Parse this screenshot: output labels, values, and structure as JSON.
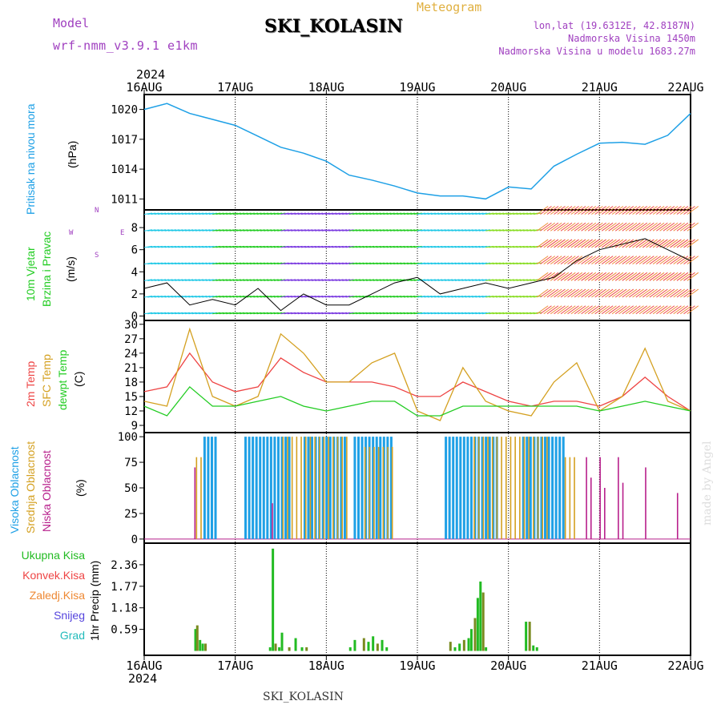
{
  "header": {
    "model_label": "Model",
    "model_value": "wrf-nmm_v3.9.1 e1km",
    "title": "SKI_KOLASIN",
    "meteogram_label": "Meteogram",
    "lonlat": "lon,lat (19.6312E, 42.8187N)",
    "altitude": "Nadmorska Visina 1450m",
    "model_altitude": "Nadmorska Visina u modelu 1683.27m"
  },
  "time_axis": {
    "year_label": "2024",
    "days": [
      "16AUG",
      "17AUG",
      "18AUG",
      "19AUG",
      "20AUG",
      "21AUG",
      "22AUG"
    ]
  },
  "footer": {
    "station": "SKI_KOLASIN",
    "credit": "made by Angel"
  },
  "panels": {
    "pressure": {
      "label": "Pritisak na nivou mora",
      "unit": "(hPa)"
    },
    "wind": {
      "label1": "10m Vjetar",
      "label2": "Brzina i Pravac",
      "unit": "(m/s)",
      "compass_top": "N",
      "compass_left": "W",
      "compass_right": "E",
      "compass_bottom": "S"
    },
    "temp": {
      "label1": "2m Temp",
      "label2": "SFC Temp",
      "label3": "dewpt Temp",
      "unit": "(C)"
    },
    "cloud": {
      "label1": "Visoka Oblacnost",
      "label2": "Srednja Oblacnost",
      "label3": "Niska Oblacnost",
      "unit": "(%)"
    },
    "precip": {
      "legend": [
        "Ukupna Kisa",
        "Konvek.Kisa",
        "Zaledj.Kisa",
        "Snijeg",
        "Grad"
      ],
      "unit": "1hr Precip (mm)"
    }
  },
  "colors": {
    "pressure": "#1ea0e6",
    "temp2m": "#ee4444",
    "sfc": "#d4a020",
    "dew": "#22cc22",
    "high_cloud": "#1ea0e6",
    "mid_cloud": "#d4a020",
    "low_cloud": "#b8208c",
    "precip_total": "#22bb22",
    "precip_conv": "#ee4444",
    "precip_frz": "#ee8833",
    "snow": "#5544dd",
    "hail": "#22bbbb",
    "title_purple": "#a040c0",
    "meteogram": "#e0b040"
  },
  "chart_data": [
    {
      "type": "line",
      "name": "pressure",
      "ylabel": "Pritisak na nivou mora (hPa)",
      "yticks": [
        1011,
        1014,
        1017,
        1020
      ],
      "ylim": [
        1009.9,
        1021.5
      ],
      "xlim_days": [
        0,
        6
      ],
      "x": [
        0,
        0.25,
        0.5,
        0.75,
        1,
        1.25,
        1.5,
        1.75,
        2,
        2.25,
        2.5,
        2.75,
        3,
        3.25,
        3.5,
        3.75,
        4,
        4.25,
        4.5,
        4.75,
        5,
        5.25,
        5.5,
        5.75,
        6
      ],
      "values": [
        1020.0,
        1020.6,
        1019.6,
        1019.0,
        1018.4,
        1017.3,
        1016.2,
        1015.6,
        1014.8,
        1013.4,
        1012.9,
        1012.3,
        1011.6,
        1011.3,
        1011.3,
        1011.0,
        1012.2,
        1012.0,
        1014.3,
        1015.5,
        1016.6,
        1016.7,
        1016.5,
        1017.4,
        1019.6
      ]
    },
    {
      "type": "line",
      "name": "wind_speed",
      "ylabel": "10m Vjetar Brzina i Pravac (m/s)",
      "yticks": [
        0,
        2,
        4,
        6,
        8
      ],
      "ylim": [
        -0.4,
        9.6
      ],
      "x": [
        0,
        0.25,
        0.5,
        0.75,
        1,
        1.25,
        1.5,
        1.75,
        2,
        2.25,
        2.5,
        2.75,
        3,
        3.25,
        3.5,
        3.75,
        4,
        4.25,
        4.5,
        4.75,
        5,
        5.25,
        5.5,
        5.75,
        6
      ],
      "series": [
        {
          "values": [
            2.5,
            3.0,
            1.0,
            1.5,
            1.0,
            2.5,
            0.5,
            2.0,
            1.0,
            1.0,
            2.0,
            3.0,
            3.5,
            2.0,
            2.5,
            3.0,
            2.5,
            3.0,
            3.5,
            5.0,
            6.0,
            6.5,
            7.0,
            6.0,
            5.0
          ]
        }
      ]
    },
    {
      "type": "line",
      "name": "temperature",
      "ylabel": "(C)",
      "yticks": [
        9,
        12,
        15,
        18,
        21,
        24,
        27,
        30
      ],
      "ylim": [
        7.5,
        30.8
      ],
      "x": [
        0,
        0.25,
        0.5,
        0.75,
        1,
        1.25,
        1.5,
        1.75,
        2,
        2.25,
        2.5,
        2.75,
        3,
        3.25,
        3.5,
        3.75,
        4,
        4.25,
        4.5,
        4.75,
        5,
        5.25,
        5.5,
        5.75,
        6
      ],
      "series": [
        {
          "name": "2m Temp",
          "values": [
            16,
            17,
            24,
            18,
            16,
            17,
            23,
            20,
            18,
            18,
            18,
            17,
            15,
            15,
            18,
            16,
            14,
            13,
            14,
            14,
            13,
            15,
            19,
            15,
            12
          ]
        },
        {
          "name": "SFC Temp",
          "values": [
            14,
            13,
            29,
            15,
            13,
            15,
            28,
            24,
            18,
            18,
            22,
            24,
            12,
            10,
            21,
            14,
            12,
            11,
            18,
            22,
            12,
            15,
            25,
            14,
            12
          ]
        },
        {
          "name": "dewpt Temp",
          "values": [
            13,
            11,
            17,
            13,
            13,
            14,
            15,
            13,
            12,
            13,
            14,
            14,
            11,
            11,
            13,
            13,
            13,
            13,
            13,
            13,
            12,
            13,
            14,
            13,
            12
          ]
        }
      ]
    },
    {
      "type": "bar",
      "name": "cloud_cover",
      "ylabel": "(%)",
      "yticks": [
        0,
        25,
        50,
        75,
        100
      ],
      "ylim": [
        -4,
        104
      ],
      "series": [
        {
          "name": "Visoka Oblacnost",
          "segments": [
            [
              0.65,
              0.8,
              100
            ],
            [
              1.1,
              1.6,
              100
            ],
            [
              1.75,
              2.2,
              100
            ],
            [
              2.3,
              2.7,
              100
            ],
            [
              3.3,
              3.9,
              100
            ],
            [
              4.15,
              4.6,
              100
            ]
          ]
        },
        {
          "name": "Srednja Oblacnost",
          "segments": [
            [
              0.55,
              0.65,
              80
            ],
            [
              1.5,
              2.2,
              100
            ],
            [
              2.4,
              2.7,
              90
            ],
            [
              3.6,
              4.4,
              100
            ],
            [
              4.6,
              4.7,
              80
            ]
          ]
        },
        {
          "name": "Niska Oblacnost",
          "points": [
            [
              0.55,
              70
            ],
            [
              1.4,
              35
            ],
            [
              4.85,
              80
            ],
            [
              4.9,
              60
            ],
            [
              5.0,
              80
            ],
            [
              5.05,
              50
            ],
            [
              5.2,
              80
            ],
            [
              5.25,
              55
            ],
            [
              5.5,
              70
            ],
            [
              5.85,
              45
            ]
          ]
        }
      ]
    },
    {
      "type": "bar",
      "name": "precipitation",
      "ylabel": "1hr Precip (mm)",
      "yticks": [
        0.59,
        1.18,
        1.77,
        2.36
      ],
      "ylim": [
        -0.12,
        2.95
      ],
      "x": [
        0.55,
        0.57,
        0.6,
        0.63,
        0.66,
        1.37,
        1.4,
        1.43,
        1.47,
        1.5,
        1.58,
        1.65,
        1.72,
        1.77,
        2.25,
        2.3,
        2.4,
        2.45,
        2.5,
        2.55,
        2.6,
        2.65,
        3.35,
        3.4,
        3.45,
        3.5,
        3.55,
        3.58,
        3.62,
        3.65,
        3.68,
        3.71,
        3.74,
        4.18,
        4.22,
        4.26,
        4.3
      ],
      "values": [
        0.6,
        0.7,
        0.3,
        0.2,
        0.2,
        0.1,
        2.8,
        0.2,
        0.1,
        0.5,
        0.1,
        0.35,
        0.1,
        0.1,
        0.1,
        0.3,
        0.35,
        0.25,
        0.4,
        0.2,
        0.3,
        0.1,
        0.25,
        0.1,
        0.2,
        0.3,
        0.35,
        0.6,
        0.9,
        1.45,
        1.9,
        1.6,
        0.1,
        0.8,
        0.8,
        0.15,
        0.1
      ]
    }
  ]
}
